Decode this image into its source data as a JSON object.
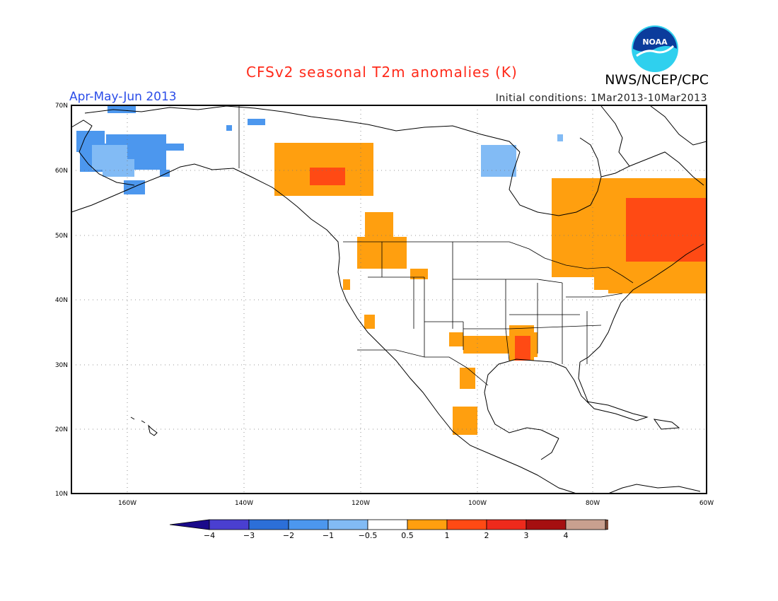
{
  "header": {
    "title": "CFSv2 seasonal T2m anomalies (K)",
    "season": "Apr-May-Jun 2013",
    "initial_conditions": "Initial conditions: 1Mar2013-10Mar2013",
    "agency": "NWS/NCEP/CPC",
    "logo_text": "NOAA"
  },
  "map": {
    "region": "North America",
    "lat_labels": [
      "70N",
      "60N",
      "50N",
      "40N",
      "30N",
      "20N",
      "10N"
    ],
    "lon_labels": [
      "160W",
      "140W",
      "120W",
      "100W",
      "80W",
      "60W"
    ],
    "anomaly_regions": [
      {
        "region": "Alaska",
        "level": "-1"
      },
      {
        "region": "northern Alaska coast",
        "level": "-0.5"
      },
      {
        "region": "Hudson Bay west",
        "level": "-0.5"
      },
      {
        "region": "Yukon / NW Canada",
        "level": "0.5"
      },
      {
        "region": "Yukon core",
        "level": "1"
      },
      {
        "region": "Quebec / Labrador",
        "level": "0.5"
      },
      {
        "region": "Quebec core",
        "level": "1"
      },
      {
        "region": "New England",
        "level": "0.5"
      },
      {
        "region": "Pacific Northwest",
        "level": "0.5"
      },
      {
        "region": "Lower Mississippi",
        "level": "0.5"
      },
      {
        "region": "Lower Mississippi core",
        "level": "1"
      },
      {
        "region": "Texas",
        "level": "0.5"
      },
      {
        "region": "Mexico",
        "level": "0.5"
      }
    ],
    "colors": {
      "-4": "#1a0a8a",
      "-3": "#4a3fd0",
      "-2": "#2c6fd8",
      "-1": "#4c97ee",
      "-0.5": "#82bbf5",
      "0": "#ffffff",
      "0.5": "#ff9f0f",
      "1": "#ff4a14",
      "2": "#ee2a1c",
      "3": "#a50f10",
      "4": "#c9a08f",
      "max": "#7a4a38"
    }
  },
  "colorbar": {
    "tick_labels": [
      "−4",
      "−3",
      "−2",
      "−1",
      "−0.5",
      "0.5",
      "1",
      "2",
      "3",
      "4"
    ]
  }
}
